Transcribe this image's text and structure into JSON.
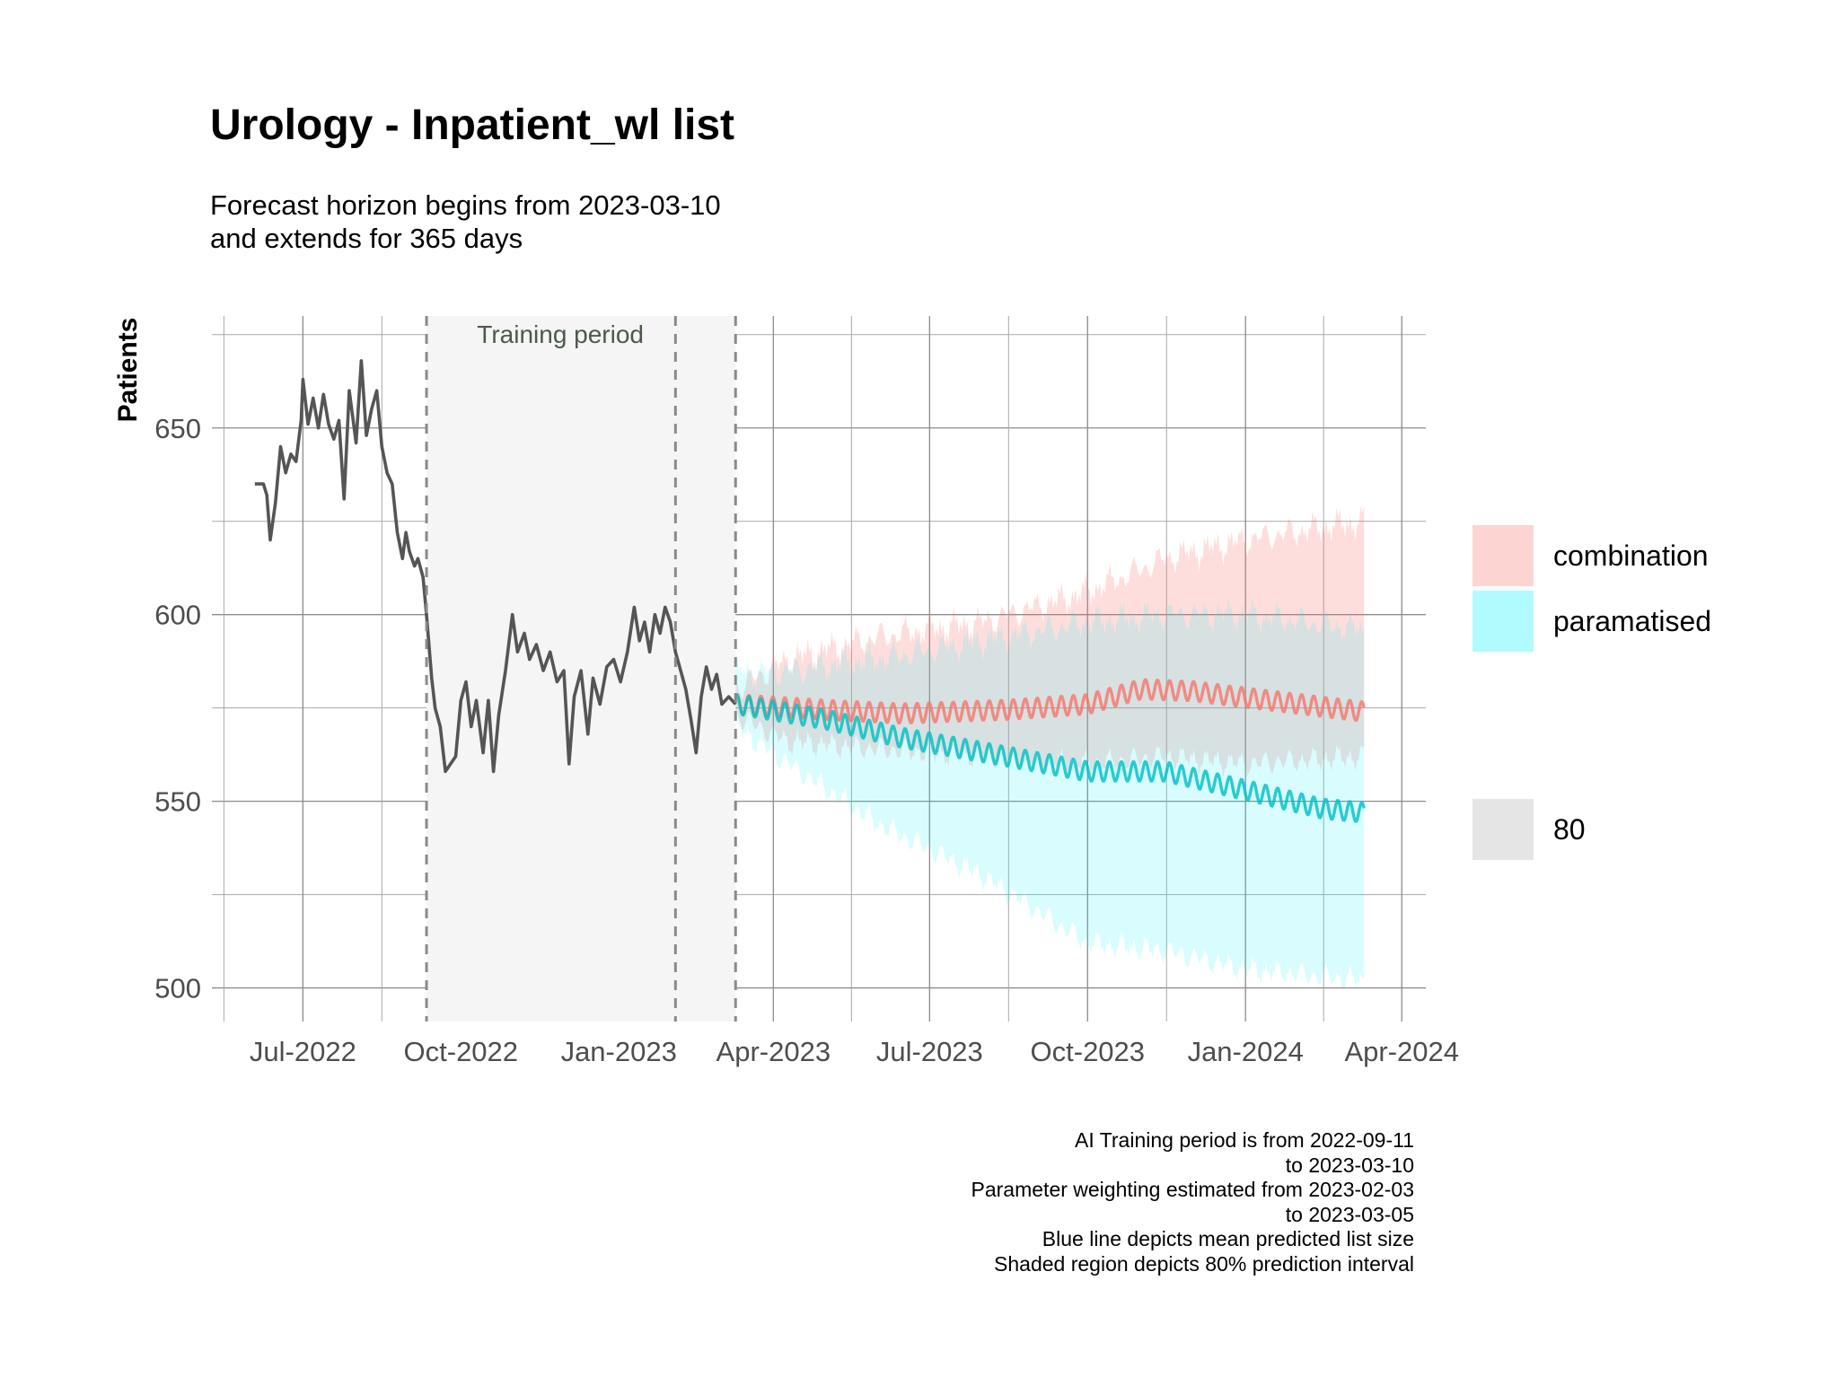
{
  "title": "Urology - Inpatient_wl list",
  "subtitle": {
    "line1": "Forecast horizon begins from 2023-03-10",
    "line2": "and extends for 365 days"
  },
  "caption": [
    "AI Training period is from 2022-09-11",
    "to 2023-03-10",
    "Parameter weighting estimated from 2023-02-03",
    "to 2023-03-05",
    "Blue line depicts mean predicted list size",
    "Shaded region depicts 80% prediction interval"
  ],
  "legend": {
    "items": [
      {
        "label": "combination",
        "fill": "#f8766d",
        "opacity": 0.25
      },
      {
        "label": "paramatised",
        "fill": "#00f2ff",
        "opacity": 0.15
      }
    ],
    "interval": {
      "label": "80",
      "fill": "#e5e5e5"
    }
  },
  "chart_data": {
    "type": "line",
    "ylabel": "Patients",
    "xlabel": "",
    "ylim": [
      491,
      680
    ],
    "xlim": [
      "2022-05-09",
      "2024-04-15"
    ],
    "yticks": [
      500,
      550,
      600,
      650
    ],
    "xticks": [
      "2022-07-01",
      "2022-10-01",
      "2023-01-01",
      "2023-04-01",
      "2023-07-01",
      "2023-10-01",
      "2024-01-01",
      "2024-04-01"
    ],
    "xtick_labels": [
      "Jul-2022",
      "Oct-2022",
      "Jan-2023",
      "Apr-2023",
      "Jul-2023",
      "Oct-2023",
      "Jan-2024",
      "Apr-2024"
    ],
    "grid": true,
    "annotations": {
      "training_label": "Training period",
      "training_start": "2022-09-11",
      "training_end": "2023-03-10",
      "vlines": [
        "2022-09-11",
        "2023-02-03",
        "2023-03-10"
      ]
    },
    "history": {
      "color": "#555555",
      "points": [
        [
          "2022-06-03",
          635
        ],
        [
          "2022-06-08",
          635
        ],
        [
          "2022-06-10",
          632
        ],
        [
          "2022-06-12",
          620
        ],
        [
          "2022-06-15",
          630
        ],
        [
          "2022-06-18",
          645
        ],
        [
          "2022-06-21",
          638
        ],
        [
          "2022-06-24",
          643
        ],
        [
          "2022-06-27",
          641
        ],
        [
          "2022-06-30",
          652
        ],
        [
          "2022-07-01",
          663
        ],
        [
          "2022-07-04",
          651
        ],
        [
          "2022-07-07",
          658
        ],
        [
          "2022-07-10",
          650
        ],
        [
          "2022-07-13",
          659
        ],
        [
          "2022-07-16",
          651
        ],
        [
          "2022-07-19",
          647
        ],
        [
          "2022-07-22",
          652
        ],
        [
          "2022-07-25",
          631
        ],
        [
          "2022-07-28",
          660
        ],
        [
          "2022-08-01",
          646
        ],
        [
          "2022-08-04",
          668
        ],
        [
          "2022-08-07",
          648
        ],
        [
          "2022-08-10",
          655
        ],
        [
          "2022-08-13",
          660
        ],
        [
          "2022-08-16",
          645
        ],
        [
          "2022-08-19",
          638
        ],
        [
          "2022-08-22",
          635
        ],
        [
          "2022-08-25",
          622
        ],
        [
          "2022-08-28",
          615
        ],
        [
          "2022-08-30",
          622
        ],
        [
          "2022-09-01",
          617
        ],
        [
          "2022-09-04",
          613
        ],
        [
          "2022-09-06",
          615
        ],
        [
          "2022-09-09",
          610
        ],
        [
          "2022-09-11",
          600
        ],
        [
          "2022-09-14",
          583
        ],
        [
          "2022-09-16",
          575
        ],
        [
          "2022-09-19",
          570
        ],
        [
          "2022-09-22",
          558
        ],
        [
          "2022-09-25",
          560
        ],
        [
          "2022-09-28",
          562
        ],
        [
          "2022-10-01",
          577
        ],
        [
          "2022-10-04",
          582
        ],
        [
          "2022-10-07",
          570
        ],
        [
          "2022-10-10",
          577
        ],
        [
          "2022-10-14",
          563
        ],
        [
          "2022-10-17",
          577
        ],
        [
          "2022-10-20",
          558
        ],
        [
          "2022-10-23",
          573
        ],
        [
          "2022-10-27",
          585
        ],
        [
          "2022-10-31",
          600
        ],
        [
          "2022-11-03",
          590
        ],
        [
          "2022-11-07",
          595
        ],
        [
          "2022-11-10",
          588
        ],
        [
          "2022-11-14",
          592
        ],
        [
          "2022-11-18",
          585
        ],
        [
          "2022-11-22",
          590
        ],
        [
          "2022-11-26",
          582
        ],
        [
          "2022-11-30",
          585
        ],
        [
          "2022-12-03",
          560
        ],
        [
          "2022-12-06",
          578
        ],
        [
          "2022-12-10",
          585
        ],
        [
          "2022-12-14",
          568
        ],
        [
          "2022-12-17",
          583
        ],
        [
          "2022-12-21",
          576
        ],
        [
          "2022-12-25",
          586
        ],
        [
          "2022-12-29",
          588
        ],
        [
          "2023-01-02",
          582
        ],
        [
          "2023-01-06",
          590
        ],
        [
          "2023-01-10",
          602
        ],
        [
          "2023-01-13",
          593
        ],
        [
          "2023-01-16",
          598
        ],
        [
          "2023-01-19",
          590
        ],
        [
          "2023-01-22",
          600
        ],
        [
          "2023-01-25",
          595
        ],
        [
          "2023-01-28",
          602
        ],
        [
          "2023-01-31",
          598
        ],
        [
          "2023-02-03",
          590
        ],
        [
          "2023-02-06",
          585
        ],
        [
          "2023-02-09",
          580
        ],
        [
          "2023-02-12",
          572
        ],
        [
          "2023-02-15",
          563
        ],
        [
          "2023-02-18",
          578
        ],
        [
          "2023-02-21",
          586
        ],
        [
          "2023-02-24",
          580
        ],
        [
          "2023-02-27",
          584
        ],
        [
          "2023-03-02",
          576
        ],
        [
          "2023-03-06",
          578
        ],
        [
          "2023-03-10",
          576
        ]
      ]
    },
    "series": [
      {
        "name": "combination",
        "color": "#f8766d",
        "mean_knots": [
          [
            "2023-03-10",
            576
          ],
          [
            "2023-05-01",
            574.5
          ],
          [
            "2023-06-15",
            573.5
          ],
          [
            "2023-08-15",
            574.5
          ],
          [
            "2023-10-01",
            576
          ],
          [
            "2023-11-01",
            580
          ],
          [
            "2023-12-01",
            579.5
          ],
          [
            "2024-01-15",
            577
          ],
          [
            "2024-03-10",
            574
          ]
        ],
        "interval_knots": [
          [
            "2023-03-10",
            573,
            580
          ],
          [
            "2023-04-10",
            566,
            588
          ],
          [
            "2023-06-01",
            564,
            594
          ],
          [
            "2023-08-01",
            562,
            598
          ],
          [
            "2023-10-01",
            560,
            606
          ],
          [
            "2023-11-15",
            562,
            615
          ],
          [
            "2024-01-01",
            560,
            620
          ],
          [
            "2024-03-10",
            562,
            625
          ]
        ]
      },
      {
        "name": "paramatised",
        "color": "#00bfc4",
        "mean_knots": [
          [
            "2023-03-10",
            576
          ],
          [
            "2023-05-01",
            572
          ],
          [
            "2023-06-15",
            567
          ],
          [
            "2023-08-15",
            562
          ],
          [
            "2023-10-01",
            558
          ],
          [
            "2023-11-15",
            558
          ],
          [
            "2024-01-01",
            553
          ],
          [
            "2024-02-15",
            548
          ],
          [
            "2024-03-10",
            547
          ]
        ],
        "interval_knots": [
          [
            "2023-03-10",
            570,
            584
          ],
          [
            "2023-04-10",
            560,
            585
          ],
          [
            "2023-06-01",
            544,
            588
          ],
          [
            "2023-08-01",
            530,
            593
          ],
          [
            "2023-10-01",
            512,
            598
          ],
          [
            "2023-11-15",
            510,
            600
          ],
          [
            "2024-01-01",
            505,
            600
          ],
          [
            "2024-03-10",
            502,
            596
          ]
        ]
      }
    ]
  }
}
